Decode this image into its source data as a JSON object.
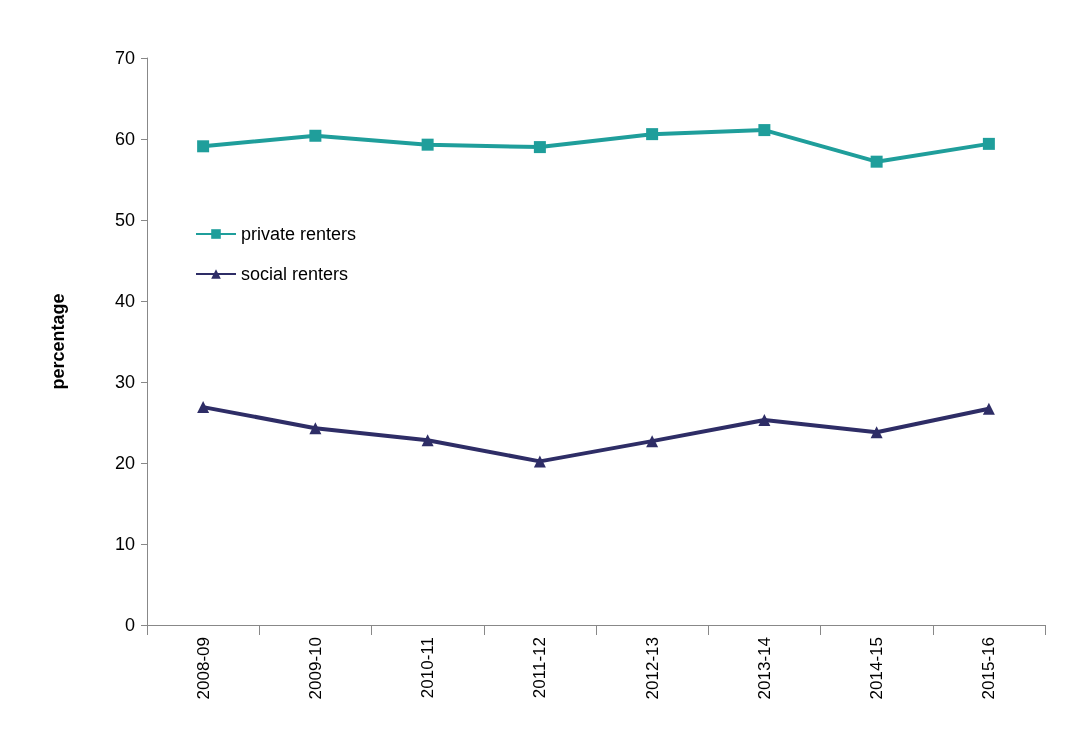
{
  "chart_data": {
    "type": "line",
    "ylabel": "percentage",
    "categories": [
      "2008-09",
      "2009-10",
      "2010-11",
      "2011-12",
      "2012-13",
      "2013-14",
      "2014-15",
      "2015-16"
    ],
    "series": [
      {
        "name": "private renters",
        "color": "#1f9e9b",
        "marker": "square",
        "values": [
          59.1,
          60.4,
          59.3,
          59.0,
          60.6,
          61.1,
          57.2,
          59.4
        ]
      },
      {
        "name": "social renters",
        "color": "#2e2d66",
        "marker": "triangle",
        "values": [
          26.9,
          24.3,
          22.8,
          20.2,
          22.7,
          25.3,
          23.8,
          26.7
        ]
      }
    ],
    "ylim": [
      0,
      70
    ],
    "yticks": [
      0,
      10,
      20,
      30,
      40,
      50,
      60,
      70
    ],
    "grid": false,
    "legend": "left"
  }
}
